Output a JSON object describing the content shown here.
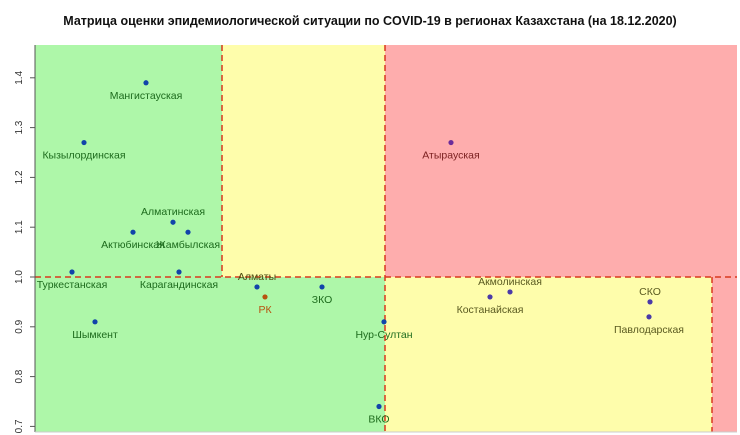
{
  "chart_data": {
    "type": "scatter",
    "title": "Матрица оценки эпидемиологической ситуации по COVID-19 в регионах Казахстана (на 18.12.2020)",
    "xlabel": "",
    "ylabel": "",
    "ylim": [
      0.7,
      1.45
    ],
    "yticks": [
      "0.7",
      "0.8",
      "0.9",
      "1.0",
      "1.1",
      "1.2",
      "1.3",
      "1.4"
    ],
    "threshold_y": 1.0,
    "zone_colors": {
      "green": "#aef7a9",
      "yellow": "#fefdab",
      "red": "#feadad",
      "line": "#d9381e"
    },
    "points": [
      {
        "label": "Мангистауская",
        "y": 1.39,
        "color": "#1144aa",
        "text": "#1d6b1d"
      },
      {
        "label": "Кызылординская",
        "y": 1.27,
        "color": "#1144aa",
        "text": "#1d6b1d"
      },
      {
        "label": "Алматинская",
        "y": 1.11,
        "color": "#1144aa",
        "text": "#1d6b1d"
      },
      {
        "label": "Актюбинская",
        "y": 1.09,
        "color": "#1144aa",
        "text": "#1d6b1d"
      },
      {
        "label": "Жамбылская",
        "y": 1.09,
        "color": "#1144aa",
        "text": "#1d6b1d"
      },
      {
        "label": "Туркестанская",
        "y": 1.01,
        "color": "#1144aa",
        "text": "#1d6b1d"
      },
      {
        "label": "Карагандинская",
        "y": 1.01,
        "color": "#1144aa",
        "text": "#1d6b1d"
      },
      {
        "label": "Шымкент",
        "y": 0.91,
        "color": "#1144aa",
        "text": "#1d6b1d"
      },
      {
        "label": "Алматы",
        "y": 0.98,
        "color": "#1144aa",
        "text": "#4a4a10"
      },
      {
        "label": "РК",
        "y": 0.96,
        "color": "#b8520f",
        "text": "#b8520f"
      },
      {
        "label": "ЗКО",
        "y": 0.98,
        "color": "#1144aa",
        "text": "#1d6b1d"
      },
      {
        "label": "Нур-Султан",
        "y": 0.91,
        "color": "#1144aa",
        "text": "#1d6b1d"
      },
      {
        "label": "ВКО",
        "y": 0.74,
        "color": "#1144aa",
        "text": "#1d6b1d"
      },
      {
        "label": "Атырауская",
        "y": 1.27,
        "color": "#6a2c9a",
        "text": "#7a1f1f"
      },
      {
        "label": "Акмолинская",
        "y": 0.97,
        "color": "#4a3aa8",
        "text": "#5a5a20"
      },
      {
        "label": "Костанайская",
        "y": 0.96,
        "color": "#4a3aa8",
        "text": "#5a5a20"
      },
      {
        "label": "СКО",
        "y": 0.95,
        "color": "#4a3aa8",
        "text": "#5a5a20"
      },
      {
        "label": "Павлодарская",
        "y": 0.92,
        "color": "#4a3aa8",
        "text": "#5a5a20"
      }
    ]
  }
}
